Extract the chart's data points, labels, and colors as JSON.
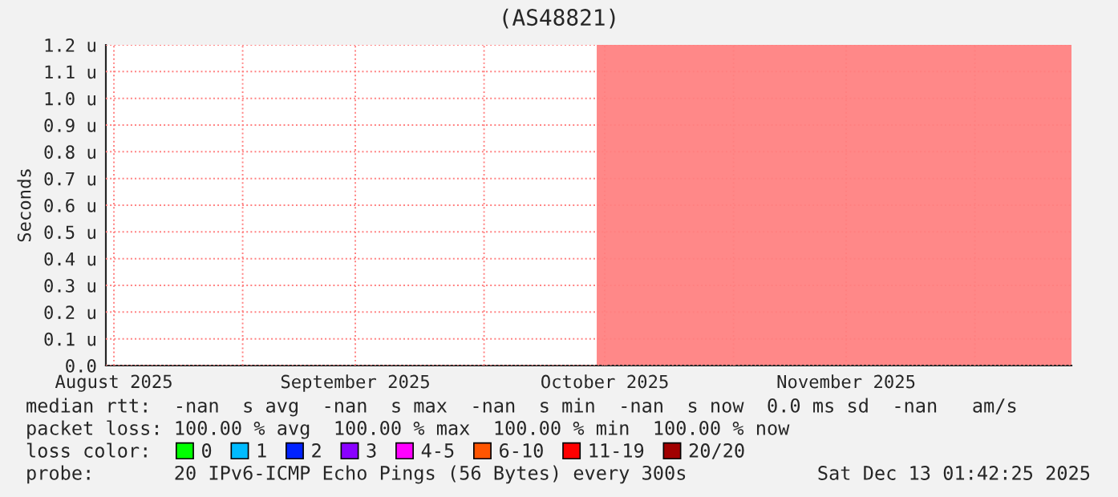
{
  "chart_data": {
    "type": "area",
    "title": "(AS48821)",
    "ylabel": "Seconds",
    "series": [
      {
        "color": "#ff8888",
        "x": [
          "2025-10-15",
          "2025-12-13"
        ],
        "values": [
          1.2,
          1.2
        ]
      },
      {
        "name": "0",
        "color": "#00ff00"
      },
      {
        "name": "1",
        "color": "#00bbff"
      },
      {
        "name": "2",
        "color": "#0022ff"
      },
      {
        "name": "3",
        "color": "#8a00ff"
      },
      {
        "name": "4-5",
        "color": "#ff00ff"
      },
      {
        "name": "6-10",
        "color": "#ff5500"
      },
      {
        "name": "11-19",
        "color": "#ff0000"
      },
      {
        "name": "20/20",
        "color": "#a10000"
      }
    ],
    "legend": "bottom",
    "legend_title": "loss color:",
    "xlim": [
      "2025-08-15",
      "2025-12-13"
    ],
    "xticks": [
      {
        "value": "2025-08-16",
        "label": "August 2025"
      },
      {
        "value": "2025-09-01",
        "label": null
      },
      {
        "value": "2025-09-15",
        "label": "September 2025"
      },
      {
        "value": "2025-10-01",
        "label": null
      },
      {
        "value": "2025-10-16",
        "label": "October 2025"
      },
      {
        "value": "2025-11-01",
        "label": null
      },
      {
        "value": "2025-11-15",
        "label": "November 2025"
      },
      {
        "value": "2025-12-01",
        "label": null
      }
    ],
    "ylim": [
      0,
      1.2
    ],
    "yticks": [
      {
        "value": 0,
        "label": "0.0"
      },
      {
        "value": 0.1,
        "label": "0.1 u"
      },
      {
        "value": 0.2,
        "label": "0.2 u"
      },
      {
        "value": 0.3,
        "label": "0.3 u"
      },
      {
        "value": 0.4,
        "label": "0.4 u"
      },
      {
        "value": 0.5,
        "label": "0.5 u"
      },
      {
        "value": 0.6,
        "label": "0.6 u"
      },
      {
        "value": 0.7,
        "label": "0.7 u"
      },
      {
        "value": 0.8,
        "label": "0.8 u"
      },
      {
        "value": 0.9,
        "label": "0.9 u"
      },
      {
        "value": 1.0,
        "label": "1.0 u"
      },
      {
        "value": 1.1,
        "label": "1.1 u"
      },
      {
        "value": 1.2,
        "label": "1.2 u"
      }
    ],
    "grid": true,
    "annotations": [
      "median rtt:  -nan  s avg  -nan  s max  -nan  s min  -nan  s now  0.0 ms sd  -nan   am/s",
      "packet loss: 100.00 % avg  100.00 % max  100.00 % min  100.00 % now",
      "probe:       20 IPv6-ICMP Echo Pings (56 Bytes) every 300s",
      "Sat Dec 13 01:42:25 2025"
    ]
  }
}
